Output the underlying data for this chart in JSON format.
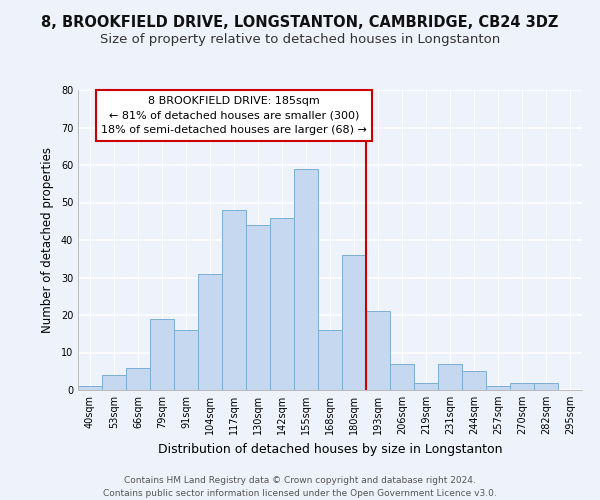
{
  "title": "8, BROOKFIELD DRIVE, LONGSTANTON, CAMBRIDGE, CB24 3DZ",
  "subtitle": "Size of property relative to detached houses in Longstanton",
  "xlabel": "Distribution of detached houses by size in Longstanton",
  "ylabel": "Number of detached properties",
  "bar_labels": [
    "40sqm",
    "53sqm",
    "66sqm",
    "79sqm",
    "91sqm",
    "104sqm",
    "117sqm",
    "130sqm",
    "142sqm",
    "155sqm",
    "168sqm",
    "180sqm",
    "193sqm",
    "206sqm",
    "219sqm",
    "231sqm",
    "244sqm",
    "257sqm",
    "270sqm",
    "282sqm",
    "295sqm"
  ],
  "bar_values": [
    1,
    4,
    6,
    19,
    16,
    31,
    48,
    44,
    46,
    59,
    16,
    36,
    21,
    7,
    2,
    7,
    5,
    1,
    2,
    2,
    0
  ],
  "bar_color": "#c5d8f0",
  "bar_edge_color": "#7bafd4",
  "bar_width": 1.0,
  "ylim": [
    0,
    80
  ],
  "yticks": [
    0,
    10,
    20,
    30,
    40,
    50,
    60,
    70,
    80
  ],
  "vline_x": 11.5,
  "vline_color": "#cc0000",
  "annotation_title": "8 BROOKFIELD DRIVE: 185sqm",
  "annotation_line1": "← 81% of detached houses are smaller (300)",
  "annotation_line2": "18% of semi-detached houses are larger (68) →",
  "annotation_box_color": "#ffffff",
  "annotation_box_edge": "#cc0000",
  "footer_line1": "Contains HM Land Registry data © Crown copyright and database right 2024.",
  "footer_line2": "Contains public sector information licensed under the Open Government Licence v3.0.",
  "bg_color": "#eef2fa",
  "grid_color": "#ffffff",
  "title_fontsize": 10.5,
  "subtitle_fontsize": 9.5,
  "xlabel_fontsize": 9,
  "ylabel_fontsize": 8.5,
  "tick_fontsize": 7,
  "annotation_fontsize": 8,
  "footer_fontsize": 6.5
}
